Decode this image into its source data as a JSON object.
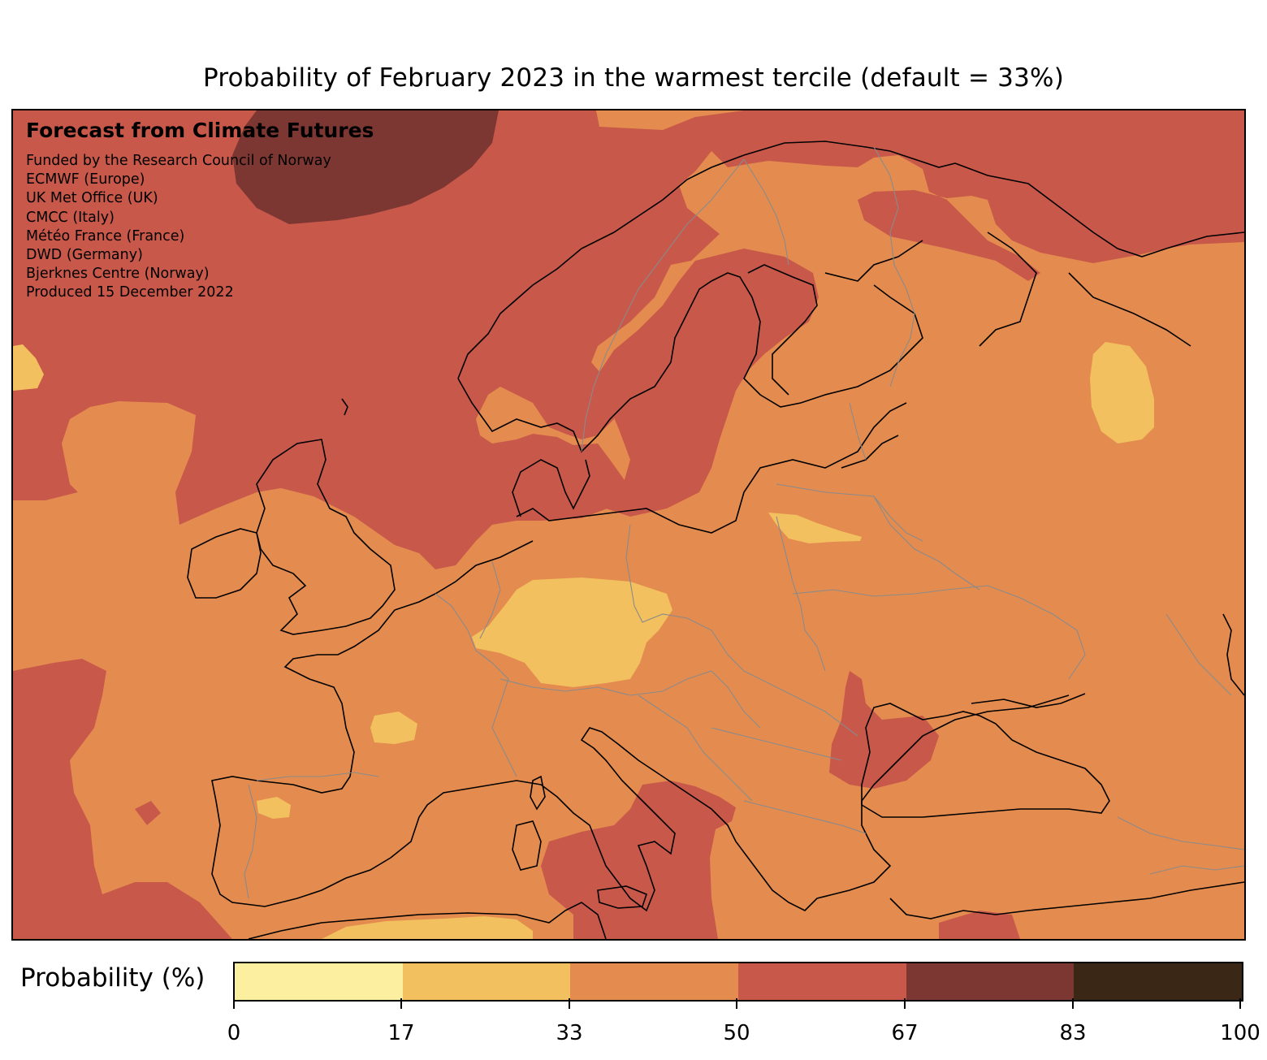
{
  "title": "Probability of February 2023 in the warmest tercile (default = 33%)",
  "overlay": {
    "heading": "Forecast from Climate Futures",
    "lines": [
      "Funded by the Research Council of Norway",
      "ECMWF (Europe)",
      "UK Met Office (UK)",
      "CMCC (Italy)",
      "Météo France (France)",
      "DWD (Germany)",
      "Bjerknes Centre (Norway)",
      "Produced 15 December 2022"
    ]
  },
  "colorbar": {
    "label": "Probability (%)",
    "ticks": [
      "0",
      "17",
      "33",
      "50",
      "67",
      "83",
      "100"
    ],
    "colors": [
      "#fcefa0",
      "#f2c05e",
      "#e48c4f",
      "#c8584a",
      "#7d3732",
      "#3a2716"
    ]
  },
  "map": {
    "background_color": "#e48c4f",
    "levels": {
      "50-67": "#c8584a",
      "67-83": "#7d3732",
      "17-33": "#f2c05e"
    }
  }
}
